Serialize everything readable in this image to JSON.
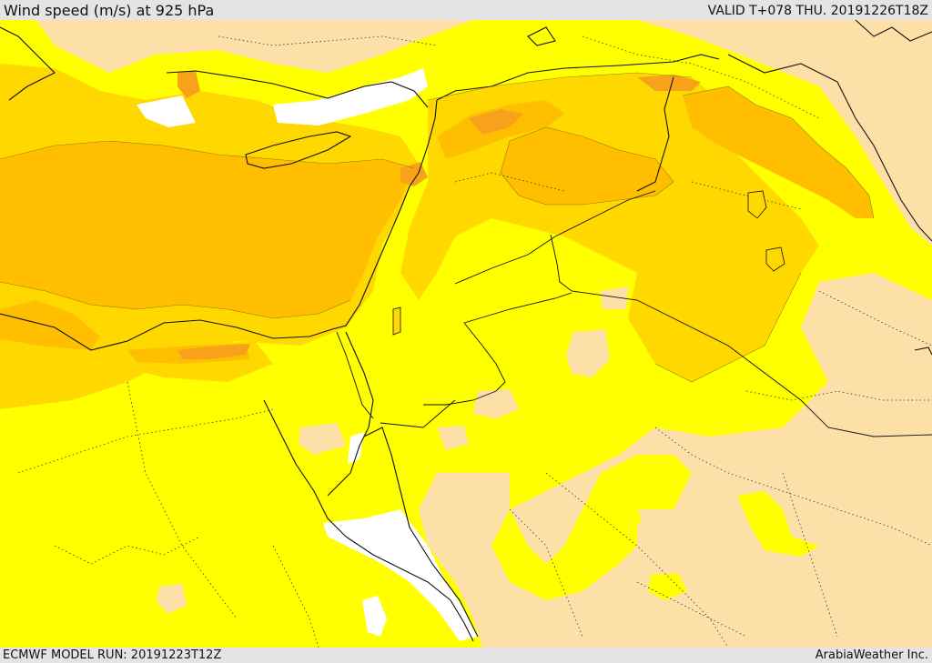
{
  "header": {
    "title": "Wind speed (m/s) at 925 hPa",
    "valid": "VALID T+078 THU. 20191226T18Z"
  },
  "footer": {
    "model_run": "ECMWF MODEL RUN: 20191223T12Z",
    "brand": "ArabiaWeather Inc."
  },
  "colors": {
    "calm": "#fde0a8",
    "light": "#ffff00",
    "moderate": "#ffd800",
    "fresh": "#ffbe00",
    "strong": "#f7a21a",
    "gale": "#e87a2a",
    "no_data": "#ffffff"
  }
}
